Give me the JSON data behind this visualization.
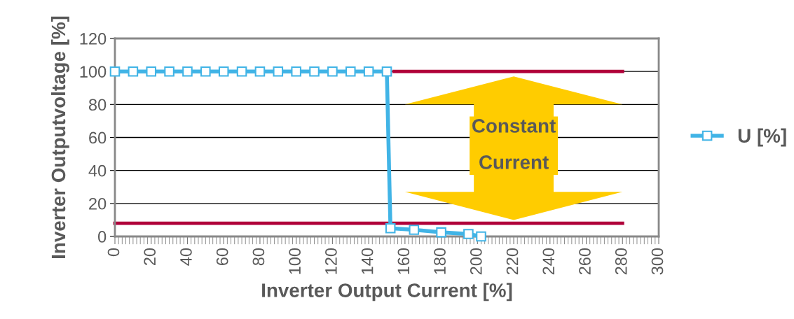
{
  "chart_data": {
    "type": "line",
    "xlabel": "Inverter Output Current [%]",
    "ylabel": "Inverter Outputvoltage [%]",
    "xlim": [
      0,
      300
    ],
    "xticks": [
      0,
      20,
      40,
      60,
      80,
      100,
      120,
      140,
      160,
      180,
      200,
      220,
      240,
      260,
      280,
      300
    ],
    "ylim": [
      0,
      120
    ],
    "yticks": [
      0,
      20,
      40,
      60,
      80,
      100,
      120
    ],
    "grid": "y",
    "legend": "right",
    "series": [
      {
        "name": "U [%]",
        "color": "#41b4e6",
        "marker": "square",
        "x": [
          0,
          10,
          20,
          30,
          40,
          50,
          60,
          70,
          80,
          90,
          100,
          110,
          120,
          130,
          140,
          150,
          152,
          165,
          180,
          195,
          202
        ],
        "values": [
          100,
          100,
          100,
          100,
          100,
          100,
          100,
          100,
          100,
          100,
          100,
          100,
          100,
          100,
          100,
          100,
          5,
          4,
          2.5,
          1.5,
          0
        ]
      },
      {
        "color": "#b0003a",
        "marker": "none",
        "x": [
          154,
          280
        ],
        "values": [
          100,
          100
        ]
      },
      {
        "color": "#b0003a",
        "marker": "none",
        "x": [
          0,
          280
        ],
        "values": [
          8,
          8
        ]
      }
    ],
    "annotations": [
      "Constant Current"
    ]
  }
}
